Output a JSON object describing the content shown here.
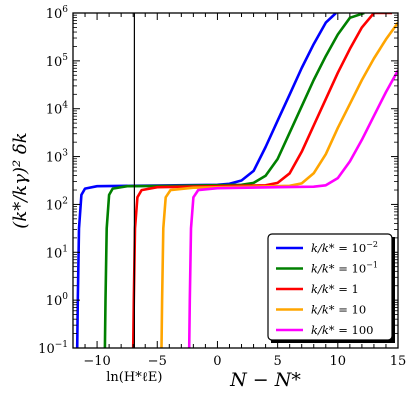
{
  "chart_data": {
    "type": "line",
    "title": "",
    "xlabel": "N − N*",
    "ylabel": "(k*/kγ)² δk",
    "xlim": [
      -12,
      15
    ],
    "ylim_log10": [
      -1,
      6
    ],
    "yscale": "log",
    "grid": false,
    "x_ticks": [
      -10,
      -5,
      0,
      5,
      10,
      15
    ],
    "x_tick_labels": [
      "−10",
      "−5",
      "0",
      "5",
      "10",
      "15"
    ],
    "y_ticks_log10": [
      -1,
      0,
      1,
      2,
      3,
      4,
      5,
      6
    ],
    "y_tick_labels": [
      {
        "base": "10",
        "exp": "−1"
      },
      {
        "base": "10",
        "exp": "0"
      },
      {
        "base": "10",
        "exp": "1"
      },
      {
        "base": "10",
        "exp": "2"
      },
      {
        "base": "10",
        "exp": "3"
      },
      {
        "base": "10",
        "exp": "4"
      },
      {
        "base": "10",
        "exp": "5"
      },
      {
        "base": "10",
        "exp": "6"
      }
    ],
    "vline": {
      "x": -6.9,
      "label": "ln(H*ℓE)"
    },
    "legend_position": "lower-right",
    "series": [
      {
        "name": "k/k* = 10⁻²",
        "label_rhs": "10",
        "label_exp": "−2",
        "color": "#0000ff",
        "points": [
          [
            -11.65,
            -1
          ],
          [
            -11.6,
            0
          ],
          [
            -11.5,
            1.5
          ],
          [
            -11.3,
            2.2
          ],
          [
            -11,
            2.33
          ],
          [
            -10,
            2.38
          ],
          [
            -7,
            2.39
          ],
          [
            0,
            2.41
          ],
          [
            1,
            2.43
          ],
          [
            2,
            2.5
          ],
          [
            3,
            2.7
          ],
          [
            4,
            3.2
          ],
          [
            5,
            3.75
          ],
          [
            6,
            4.3
          ],
          [
            7,
            4.85
          ],
          [
            8,
            5.35
          ],
          [
            9,
            5.8
          ],
          [
            9.85,
            6
          ]
        ]
      },
      {
        "name": "k/k* = 10⁻¹",
        "label_rhs": "10",
        "label_exp": "−1",
        "color": "#008000",
        "points": [
          [
            -9.35,
            -1
          ],
          [
            -9.3,
            0
          ],
          [
            -9.2,
            1.5
          ],
          [
            -9,
            2.2
          ],
          [
            -8.7,
            2.33
          ],
          [
            -7.5,
            2.38
          ],
          [
            -3,
            2.39
          ],
          [
            2,
            2.41
          ],
          [
            3,
            2.45
          ],
          [
            4,
            2.6
          ],
          [
            5,
            2.95
          ],
          [
            6,
            3.5
          ],
          [
            7,
            4.05
          ],
          [
            8,
            4.6
          ],
          [
            9,
            5.1
          ],
          [
            10,
            5.55
          ],
          [
            11,
            5.9
          ],
          [
            12.2,
            6
          ]
        ]
      },
      {
        "name": "k/k* = 1",
        "label_rhs": "1",
        "label_exp": "",
        "color": "#ff0000",
        "points": [
          [
            -7.0,
            -1
          ],
          [
            -6.95,
            0
          ],
          [
            -6.85,
            1.5
          ],
          [
            -6.65,
            2.15
          ],
          [
            -6.3,
            2.3
          ],
          [
            -5,
            2.36
          ],
          [
            0,
            2.38
          ],
          [
            4,
            2.4
          ],
          [
            5,
            2.45
          ],
          [
            6,
            2.65
          ],
          [
            7,
            3.1
          ],
          [
            8,
            3.65
          ],
          [
            9,
            4.2
          ],
          [
            10,
            4.75
          ],
          [
            11,
            5.25
          ],
          [
            12,
            5.7
          ],
          [
            13,
            6
          ],
          [
            14.5,
            6
          ]
        ]
      },
      {
        "name": "k/k* = 10",
        "label_rhs": "10",
        "label_exp": "",
        "color": "#ffa500",
        "points": [
          [
            -4.65,
            -1
          ],
          [
            -4.6,
            0
          ],
          [
            -4.5,
            1.5
          ],
          [
            -4.3,
            2.15
          ],
          [
            -3.9,
            2.3
          ],
          [
            -2,
            2.35
          ],
          [
            3,
            2.37
          ],
          [
            6,
            2.39
          ],
          [
            7,
            2.44
          ],
          [
            8,
            2.65
          ],
          [
            9,
            3.05
          ],
          [
            10,
            3.6
          ],
          [
            11,
            4.1
          ],
          [
            12,
            4.6
          ],
          [
            13,
            5.05
          ],
          [
            14,
            5.45
          ],
          [
            15,
            5.8
          ]
        ]
      },
      {
        "name": "k/k* = 100",
        "label_rhs": "100",
        "label_exp": "",
        "color": "#ff00ff",
        "points": [
          [
            -2.35,
            -1
          ],
          [
            -2.3,
            0
          ],
          [
            -2.2,
            1.5
          ],
          [
            -2,
            2.15
          ],
          [
            -1.6,
            2.3
          ],
          [
            0,
            2.34
          ],
          [
            5,
            2.36
          ],
          [
            8,
            2.37
          ],
          [
            9,
            2.4
          ],
          [
            10,
            2.55
          ],
          [
            11,
            2.9
          ],
          [
            12,
            3.35
          ],
          [
            13,
            3.85
          ],
          [
            14,
            4.35
          ],
          [
            15,
            4.8
          ]
        ]
      }
    ]
  }
}
